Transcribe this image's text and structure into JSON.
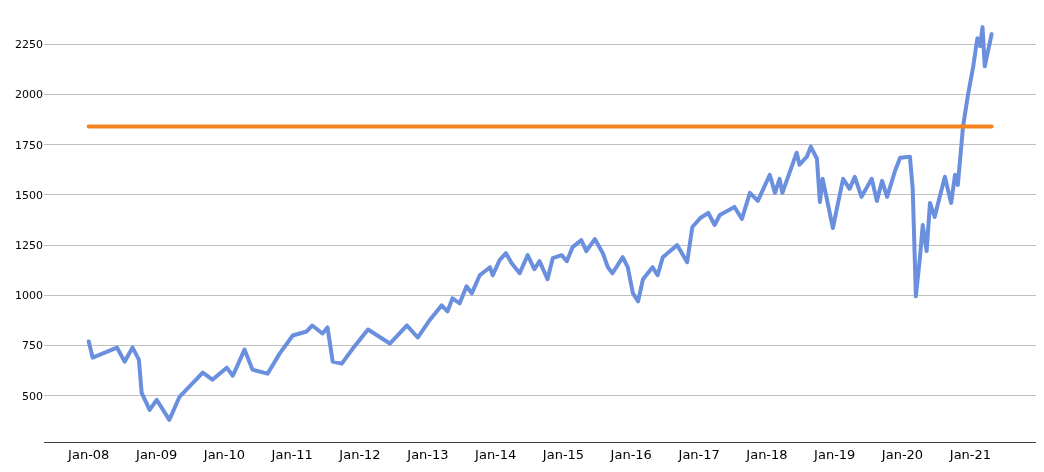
{
  "chart_data": {
    "type": "line",
    "xlim": [
      "2007-05-05",
      "2021-12-20"
    ],
    "xticks": [
      {
        "value": "2008-01-01",
        "label": "Jan-08"
      },
      {
        "value": "2009-01-01",
        "label": "Jan-09"
      },
      {
        "value": "2010-01-01",
        "label": "Jan-10"
      },
      {
        "value": "2011-01-01",
        "label": "Jan-11"
      },
      {
        "value": "2012-01-01",
        "label": "Jan-12"
      },
      {
        "value": "2013-01-01",
        "label": "Jan-13"
      },
      {
        "value": "2014-01-01",
        "label": "Jan-14"
      },
      {
        "value": "2015-01-01",
        "label": "Jan-15"
      },
      {
        "value": "2016-01-01",
        "label": "Jan-16"
      },
      {
        "value": "2017-01-01",
        "label": "Jan-17"
      },
      {
        "value": "2018-01-01",
        "label": "Jan-18"
      },
      {
        "value": "2019-01-01",
        "label": "Jan-19"
      },
      {
        "value": "2020-01-01",
        "label": "Jan-20"
      },
      {
        "value": "2021-01-01",
        "label": "Jan-21"
      }
    ],
    "ylim": [
      270,
      2470
    ],
    "yticks": [
      500,
      750,
      1000,
      1250,
      1500,
      1750,
      2000,
      2250
    ],
    "grid": "y",
    "marker": "none",
    "line_style": "solid",
    "series": [
      {
        "color": "#6a8fdf",
        "x": [
          "2008-01-01",
          "2008-01-22",
          "2008-06-01",
          "2008-07-12",
          "2008-08-24",
          "2008-09-27",
          "2008-10-12",
          "2008-11-24",
          "2009-01-01",
          "2009-03-10",
          "2009-05-04",
          "2009-09-06",
          "2009-10-28",
          "2010-01-13",
          "2010-02-15",
          "2010-04-19",
          "2010-06-01",
          "2010-08-21",
          "2010-10-25",
          "2011-01-04",
          "2011-03-19",
          "2011-04-19",
          "2011-06-13",
          "2011-07-10",
          "2011-08-07",
          "2011-09-25",
          "2011-11-19",
          "2012-02-13",
          "2012-06-10",
          "2012-09-10",
          "2012-11-07",
          "2013-01-13",
          "2013-03-16",
          "2013-04-16",
          "2013-05-13",
          "2013-06-21",
          "2013-07-28",
          "2013-08-25",
          "2013-10-07",
          "2013-12-01",
          "2013-12-16",
          "2014-01-22",
          "2014-02-25",
          "2014-03-28",
          "2014-05-10",
          "2014-06-22",
          "2014-07-28",
          "2014-08-25",
          "2014-10-07",
          "2014-11-04",
          "2014-12-22",
          "2015-01-19",
          "2015-02-19",
          "2015-04-07",
          "2015-05-04",
          "2015-06-19",
          "2015-08-01",
          "2015-08-28",
          "2015-09-22",
          "2015-11-16",
          "2015-12-13",
          "2016-01-10",
          "2016-02-07",
          "2016-03-04",
          "2016-04-25",
          "2016-05-22",
          "2016-06-19",
          "2016-09-04",
          "2016-10-28",
          "2016-11-25",
          "2017-01-07",
          "2017-02-19",
          "2017-03-25",
          "2017-04-22",
          "2017-07-10",
          "2017-08-19",
          "2017-10-01",
          "2017-11-13",
          "2018-01-16",
          "2018-02-13",
          "2018-03-10",
          "2018-03-25",
          "2018-06-10",
          "2018-06-25",
          "2018-08-04",
          "2018-08-25",
          "2018-09-27",
          "2018-10-13",
          "2018-10-28",
          "2018-12-22",
          "2019-01-19",
          "2019-02-15",
          "2019-03-22",
          "2019-04-19",
          "2019-05-25",
          "2019-07-19",
          "2019-08-16",
          "2019-09-13",
          "2019-10-10",
          "2019-11-22",
          "2019-12-19",
          "2020-02-10",
          "2020-02-25",
          "2020-03-13",
          "2020-04-04",
          "2020-04-19",
          "2020-05-10",
          "2020-05-28",
          "2020-06-22",
          "2020-08-16",
          "2020-09-19",
          "2020-10-10",
          "2020-10-25",
          "2020-11-22",
          "2020-12-19",
          "2021-01-16",
          "2021-02-07",
          "2021-02-22",
          "2021-03-07",
          "2021-03-19",
          "2021-04-25"
        ],
        "values": [
          770,
          690,
          740,
          670,
          740,
          680,
          515,
          430,
          480,
          380,
          495,
          615,
          580,
          640,
          600,
          730,
          630,
          610,
          710,
          800,
          820,
          850,
          810,
          840,
          670,
          660,
          730,
          830,
          760,
          850,
          790,
          880,
          950,
          920,
          985,
          960,
          1045,
          1010,
          1100,
          1140,
          1100,
          1175,
          1210,
          1160,
          1110,
          1200,
          1130,
          1170,
          1080,
          1185,
          1200,
          1170,
          1240,
          1275,
          1220,
          1280,
          1210,
          1140,
          1110,
          1190,
          1140,
          1010,
          970,
          1080,
          1140,
          1100,
          1190,
          1250,
          1165,
          1340,
          1385,
          1410,
          1350,
          1400,
          1440,
          1380,
          1510,
          1470,
          1600,
          1510,
          1580,
          1510,
          1710,
          1650,
          1690,
          1740,
          1680,
          1465,
          1580,
          1335,
          1460,
          1580,
          1530,
          1590,
          1490,
          1580,
          1470,
          1570,
          1490,
          1620,
          1685,
          1690,
          1530,
          995,
          1190,
          1350,
          1220,
          1460,
          1390,
          1590,
          1460,
          1600,
          1550,
          1840,
          2000,
          2140,
          2280,
          2240,
          2335,
          2140,
          2300
        ]
      },
      {
        "color": "#f5821f",
        "x": [
          "2008-01-01",
          "2021-04-25"
        ],
        "values": [
          1840,
          1840
        ]
      }
    ]
  }
}
